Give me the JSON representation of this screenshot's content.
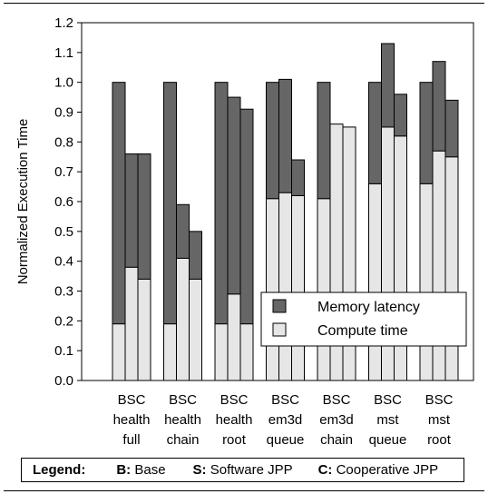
{
  "chart_data": {
    "type": "bar",
    "ylabel": "Normalized Execution Time",
    "ylim": [
      0,
      1.2
    ],
    "yticks": [
      "0.0",
      "0.1",
      "0.2",
      "0.3",
      "0.4",
      "0.5",
      "0.6",
      "0.7",
      "0.8",
      "0.9",
      "1.0",
      "1.1",
      "1.2"
    ],
    "categories": [
      [
        "BSC",
        "health",
        "full"
      ],
      [
        "BSC",
        "health",
        "chain"
      ],
      [
        "BSC",
        "health",
        "root"
      ],
      [
        "BSC",
        "em3d",
        "queue"
      ],
      [
        "BSC",
        "em3d",
        "chain"
      ],
      [
        "BSC",
        "mst",
        "queue"
      ],
      [
        "BSC",
        "mst",
        "root"
      ]
    ],
    "series": [
      {
        "name": "Compute time",
        "color": "#e6e6e6",
        "values": [
          [
            0.19,
            0.38,
            0.34
          ],
          [
            0.19,
            0.41,
            0.34
          ],
          [
            0.19,
            0.29,
            0.19
          ],
          [
            0.61,
            0.63,
            0.62
          ],
          [
            0.61,
            0.86,
            0.85
          ],
          [
            0.66,
            0.85,
            0.82
          ],
          [
            0.66,
            0.77,
            0.75
          ]
        ]
      },
      {
        "name": "Memory latency",
        "color": "#666666",
        "values": [
          [
            0.81,
            0.38,
            0.42
          ],
          [
            0.81,
            0.18,
            0.16
          ],
          [
            0.81,
            0.66,
            0.72
          ],
          [
            0.39,
            0.38,
            0.12
          ],
          [
            0.39,
            0.0,
            0.0
          ],
          [
            0.34,
            0.28,
            0.14
          ],
          [
            0.34,
            0.3,
            0.19
          ]
        ]
      }
    ],
    "totals": [
      [
        1.0,
        0.76,
        0.76
      ],
      [
        1.0,
        0.59,
        0.5
      ],
      [
        1.0,
        0.95,
        0.91
      ],
      [
        1.0,
        1.01,
        0.74
      ],
      [
        1.0,
        0.86,
        0.85
      ],
      [
        1.0,
        1.13,
        0.96
      ],
      [
        1.0,
        1.07,
        0.94
      ]
    ],
    "legend": {
      "position": "lower-right-inside",
      "entries": [
        "Memory latency",
        "Compute time"
      ]
    },
    "grid": false
  },
  "footer_legend": {
    "title": "Legend:",
    "items": [
      {
        "key": "B:",
        "text": "Base"
      },
      {
        "key": "S:",
        "text": "Software JPP"
      },
      {
        "key": "C:",
        "text": "Cooperative JPP"
      }
    ]
  }
}
